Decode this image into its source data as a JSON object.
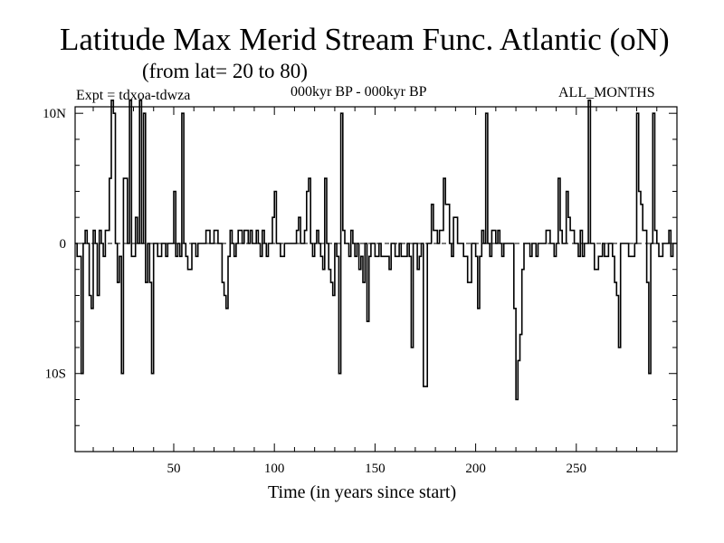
{
  "title": "Latitude Max Merid Stream Func. Atlantic (oN)",
  "subtitle": "(from lat= 20 to 80)",
  "experiment_label": "Expt = tdxoa-tdwza",
  "period_label": "000kyr BP - 000kyr BP",
  "months_label": "ALL_MONTHS",
  "chart_data": {
    "type": "line",
    "title": "Latitude Max Merid Stream Func. Atlantic (oN)",
    "subtitle": "(from lat= 20 to 80)",
    "xlabel": "Time (in years since start)",
    "ylabel": "",
    "xlim": [
      1,
      300
    ],
    "ylim": [
      -16,
      10.5
    ],
    "x_ticks": [
      50,
      100,
      150,
      200,
      250
    ],
    "x_tick_labels": [
      "50",
      "100",
      "150",
      "200",
      "250"
    ],
    "y_ticks": [
      10,
      0,
      -10
    ],
    "y_tick_labels": [
      "10N",
      "0",
      "10S"
    ],
    "zero_line": "dashed",
    "grid": false,
    "line_color": "#000000",
    "series": [
      {
        "points": [
          [
            1,
            0
          ],
          [
            2,
            -1
          ],
          [
            3,
            -1
          ],
          [
            4,
            -10
          ],
          [
            5,
            0
          ],
          [
            6,
            1
          ],
          [
            7,
            0
          ],
          [
            8,
            -4
          ],
          [
            9,
            -5
          ],
          [
            10,
            1
          ],
          [
            11,
            0
          ],
          [
            12,
            -4
          ],
          [
            13,
            1
          ],
          [
            14,
            0
          ],
          [
            15,
            -1
          ],
          [
            16,
            1
          ],
          [
            17,
            1
          ],
          [
            18,
            5
          ],
          [
            19,
            11
          ],
          [
            20,
            10
          ],
          [
            21,
            0
          ],
          [
            22,
            -3
          ],
          [
            23,
            -1
          ],
          [
            24,
            -10
          ],
          [
            25,
            5
          ],
          [
            26,
            5
          ],
          [
            27,
            0
          ],
          [
            28,
            11
          ],
          [
            29,
            -1
          ],
          [
            30,
            -1
          ],
          [
            31,
            2
          ],
          [
            32,
            0
          ],
          [
            33,
            11
          ],
          [
            34,
            0
          ],
          [
            35,
            10
          ],
          [
            36,
            -3
          ],
          [
            37,
            0
          ],
          [
            38,
            -3
          ],
          [
            39,
            -10
          ],
          [
            40,
            0
          ],
          [
            41,
            0
          ],
          [
            42,
            -1
          ],
          [
            43,
            -1
          ],
          [
            44,
            0
          ],
          [
            45,
            0
          ],
          [
            46,
            -1
          ],
          [
            47,
            0
          ],
          [
            48,
            0
          ],
          [
            49,
            0
          ],
          [
            50,
            4
          ],
          [
            51,
            -1
          ],
          [
            52,
            0
          ],
          [
            53,
            -1
          ],
          [
            54,
            10
          ],
          [
            55,
            0
          ],
          [
            56,
            -1
          ],
          [
            57,
            -2
          ],
          [
            58,
            -2
          ],
          [
            59,
            0
          ],
          [
            60,
            0
          ],
          [
            61,
            -1
          ],
          [
            62,
            0
          ],
          [
            63,
            0
          ],
          [
            64,
            0
          ],
          [
            65,
            0
          ],
          [
            66,
            1
          ],
          [
            67,
            1
          ],
          [
            68,
            0
          ],
          [
            69,
            0
          ],
          [
            70,
            1
          ],
          [
            71,
            1
          ],
          [
            72,
            0
          ],
          [
            73,
            0
          ],
          [
            74,
            -3
          ],
          [
            75,
            -4
          ],
          [
            76,
            -5
          ],
          [
            77,
            -1
          ],
          [
            78,
            1
          ],
          [
            79,
            0
          ],
          [
            80,
            -1
          ],
          [
            81,
            0
          ],
          [
            82,
            1
          ],
          [
            83,
            1
          ],
          [
            84,
            0
          ],
          [
            85,
            1
          ],
          [
            86,
            1
          ],
          [
            87,
            0
          ],
          [
            88,
            1
          ],
          [
            89,
            0
          ],
          [
            90,
            0
          ],
          [
            91,
            1
          ],
          [
            92,
            0
          ],
          [
            93,
            -1
          ],
          [
            94,
            1
          ],
          [
            95,
            0
          ],
          [
            96,
            -1
          ],
          [
            97,
            0
          ],
          [
            98,
            0
          ],
          [
            99,
            2
          ],
          [
            100,
            4
          ],
          [
            101,
            0
          ],
          [
            102,
            0
          ],
          [
            103,
            -1
          ],
          [
            104,
            -1
          ],
          [
            105,
            0
          ],
          [
            106,
            0
          ],
          [
            107,
            0
          ],
          [
            108,
            0
          ],
          [
            109,
            0
          ],
          [
            110,
            0
          ],
          [
            111,
            1
          ],
          [
            112,
            2
          ],
          [
            113,
            0
          ],
          [
            114,
            0
          ],
          [
            115,
            1
          ],
          [
            116,
            4
          ],
          [
            117,
            5
          ],
          [
            118,
            0
          ],
          [
            119,
            -1
          ],
          [
            120,
            0
          ],
          [
            121,
            1
          ],
          [
            122,
            0
          ],
          [
            123,
            -1
          ],
          [
            124,
            -2
          ],
          [
            125,
            5
          ],
          [
            126,
            0
          ],
          [
            127,
            -2
          ],
          [
            128,
            -3
          ],
          [
            129,
            -4
          ],
          [
            130,
            0
          ],
          [
            131,
            -1
          ],
          [
            132,
            -10
          ],
          [
            133,
            10
          ],
          [
            134,
            1
          ],
          [
            135,
            0
          ],
          [
            136,
            0
          ],
          [
            137,
            -1
          ],
          [
            138,
            1
          ],
          [
            139,
            0
          ],
          [
            140,
            -1
          ],
          [
            141,
            0
          ],
          [
            142,
            -2
          ],
          [
            143,
            -1
          ],
          [
            144,
            -3
          ],
          [
            145,
            0
          ],
          [
            146,
            -6
          ],
          [
            147,
            -1
          ],
          [
            148,
            0
          ],
          [
            149,
            0
          ],
          [
            150,
            -1
          ],
          [
            151,
            -1
          ],
          [
            152,
            0
          ],
          [
            153,
            -1
          ],
          [
            154,
            -1
          ],
          [
            155,
            -1
          ],
          [
            156,
            -1
          ],
          [
            157,
            -2
          ],
          [
            158,
            0
          ],
          [
            159,
            0
          ],
          [
            160,
            -1
          ],
          [
            161,
            -1
          ],
          [
            162,
            0
          ],
          [
            163,
            -1
          ],
          [
            164,
            -1
          ],
          [
            165,
            -1
          ],
          [
            166,
            0
          ],
          [
            167,
            -1
          ],
          [
            168,
            -8
          ],
          [
            169,
            0
          ],
          [
            170,
            0
          ],
          [
            171,
            -2
          ],
          [
            172,
            -1
          ],
          [
            173,
            0
          ],
          [
            174,
            -11
          ],
          [
            175,
            -11
          ],
          [
            176,
            0
          ],
          [
            177,
            0
          ],
          [
            178,
            3
          ],
          [
            179,
            1
          ],
          [
            180,
            1
          ],
          [
            181,
            0
          ],
          [
            182,
            1
          ],
          [
            183,
            1
          ],
          [
            184,
            5
          ],
          [
            185,
            3
          ],
          [
            186,
            3
          ],
          [
            187,
            0
          ],
          [
            188,
            -1
          ],
          [
            189,
            2
          ],
          [
            190,
            2
          ],
          [
            191,
            0
          ],
          [
            192,
            0
          ],
          [
            193,
            0
          ],
          [
            194,
            -1
          ],
          [
            195,
            -1
          ],
          [
            196,
            -3
          ],
          [
            197,
            -3
          ],
          [
            198,
            0
          ],
          [
            199,
            0
          ],
          [
            200,
            -1
          ],
          [
            201,
            -5
          ],
          [
            202,
            -1
          ],
          [
            203,
            1
          ],
          [
            204,
            0
          ],
          [
            205,
            10
          ],
          [
            206,
            0
          ],
          [
            207,
            -1
          ],
          [
            208,
            1
          ],
          [
            209,
            1
          ],
          [
            210,
            0
          ],
          [
            211,
            1
          ],
          [
            212,
            0
          ],
          [
            213,
            -1
          ],
          [
            214,
            0
          ],
          [
            215,
            0
          ],
          [
            216,
            0
          ],
          [
            217,
            0
          ],
          [
            218,
            0
          ],
          [
            219,
            -5
          ],
          [
            220,
            -12
          ],
          [
            221,
            -9
          ],
          [
            222,
            -7
          ],
          [
            223,
            -2
          ],
          [
            224,
            0
          ],
          [
            225,
            0
          ],
          [
            226,
            0
          ],
          [
            227,
            -1
          ],
          [
            228,
            0
          ],
          [
            229,
            0
          ],
          [
            230,
            -1
          ],
          [
            231,
            0
          ],
          [
            232,
            0
          ],
          [
            233,
            0
          ],
          [
            234,
            0
          ],
          [
            235,
            1
          ],
          [
            236,
            1
          ],
          [
            237,
            0
          ],
          [
            238,
            0
          ],
          [
            239,
            -1
          ],
          [
            240,
            0
          ],
          [
            241,
            5
          ],
          [
            242,
            1
          ],
          [
            243,
            0
          ],
          [
            244,
            0
          ],
          [
            245,
            4
          ],
          [
            246,
            2
          ],
          [
            247,
            1
          ],
          [
            248,
            1
          ],
          [
            249,
            0
          ],
          [
            250,
            0
          ],
          [
            251,
            -1
          ],
          [
            252,
            1
          ],
          [
            253,
            -1
          ],
          [
            254,
            0
          ],
          [
            255,
            0
          ],
          [
            256,
            11
          ],
          [
            257,
            0
          ],
          [
            258,
            0
          ],
          [
            259,
            -2
          ],
          [
            260,
            -2
          ],
          [
            261,
            -1
          ],
          [
            262,
            -1
          ],
          [
            263,
            0
          ],
          [
            264,
            -1
          ],
          [
            265,
            -1
          ],
          [
            266,
            0
          ],
          [
            267,
            0
          ],
          [
            268,
            -1
          ],
          [
            269,
            -3
          ],
          [
            270,
            -4
          ],
          [
            271,
            -8
          ],
          [
            272,
            0
          ],
          [
            273,
            0
          ],
          [
            274,
            0
          ],
          [
            275,
            0
          ],
          [
            276,
            -1
          ],
          [
            277,
            -1
          ],
          [
            278,
            -1
          ],
          [
            279,
            0
          ],
          [
            280,
            10
          ],
          [
            281,
            4
          ],
          [
            282,
            3
          ],
          [
            283,
            1
          ],
          [
            284,
            1
          ],
          [
            285,
            -3
          ],
          [
            286,
            -10
          ],
          [
            287,
            0
          ],
          [
            288,
            10
          ],
          [
            289,
            1
          ],
          [
            290,
            0
          ],
          [
            291,
            -1
          ],
          [
            292,
            -1
          ],
          [
            293,
            0
          ],
          [
            294,
            0
          ],
          [
            295,
            0
          ],
          [
            296,
            1
          ],
          [
            297,
            -1
          ],
          [
            298,
            0
          ],
          [
            299,
            0
          ]
        ]
      }
    ]
  }
}
